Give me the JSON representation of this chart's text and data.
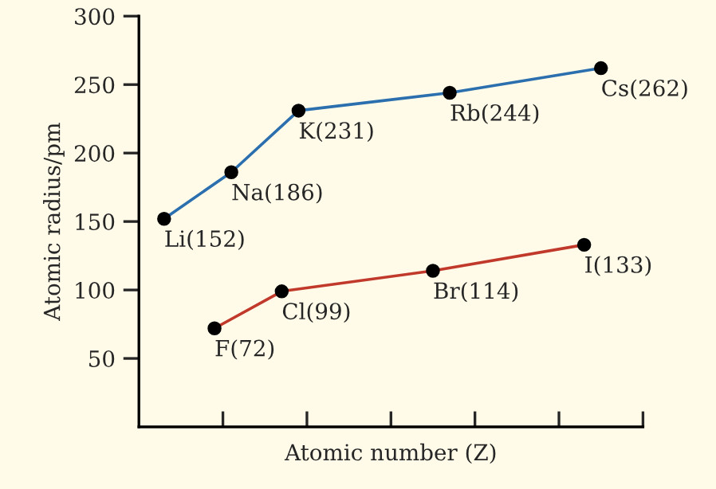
{
  "chart_data": {
    "type": "line",
    "xlabel": "Atomic number (Z)",
    "ylabel": "Atomic radius/pm",
    "categories": [
      null,
      null,
      null,
      null,
      null,
      null,
      null,
      null,
      null,
      null,
      null,
      null,
      null,
      null,
      null,
      null,
      null,
      null,
      null,
      null,
      null,
      null,
      null,
      null,
      null,
      null,
      null,
      null,
      null,
      null
    ],
    "ylim": [
      0,
      300
    ],
    "yticks": [
      50,
      100,
      150,
      200,
      250,
      300
    ],
    "grid": false,
    "legend": false,
    "marker": "circle",
    "line_style": "solid",
    "series": [
      {
        "color": "#2b6fae",
        "values": [
          null,
          152,
          null,
          null,
          null,
          186,
          null,
          null,
          null,
          231,
          null,
          null,
          null,
          null,
          null,
          null,
          null,
          null,
          244,
          null,
          null,
          null,
          null,
          null,
          null,
          null,
          null,
          262,
          null,
          null
        ],
        "value_labels": [
          null,
          "Li(152)",
          null,
          null,
          null,
          "Na(186)",
          null,
          null,
          null,
          "K(231)",
          null,
          null,
          null,
          null,
          null,
          null,
          null,
          null,
          "Rb(244)",
          null,
          null,
          null,
          null,
          null,
          null,
          null,
          null,
          "Cs(262)",
          null,
          null
        ]
      },
      {
        "color": "#c0392b",
        "values": [
          null,
          null,
          null,
          null,
          72,
          null,
          null,
          null,
          99,
          null,
          null,
          null,
          null,
          null,
          null,
          null,
          null,
          114,
          null,
          null,
          null,
          null,
          null,
          null,
          null,
          null,
          133,
          null,
          null,
          null
        ],
        "value_labels": [
          null,
          null,
          null,
          null,
          "F(72)",
          null,
          null,
          null,
          "Cl(99)",
          null,
          null,
          null,
          null,
          null,
          null,
          null,
          null,
          "Br(114)",
          null,
          null,
          null,
          null,
          null,
          null,
          null,
          null,
          "I(133)",
          null,
          null,
          null
        ]
      }
    ]
  }
}
